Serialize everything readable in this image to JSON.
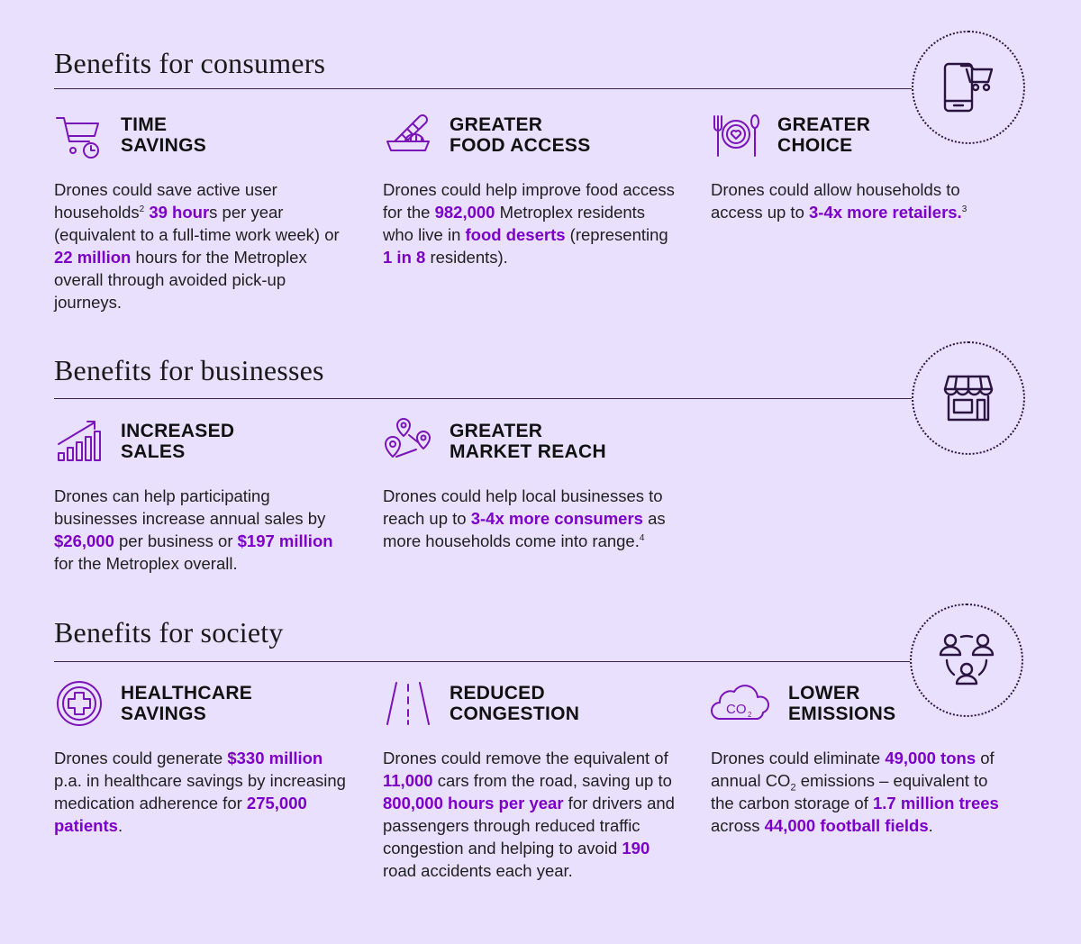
{
  "sections": [
    {
      "title": "Benefits for consumers",
      "badge_icon": "phone-cart-icon",
      "items": [
        {
          "icon": "cart-clock-icon",
          "title_line1": "TIME",
          "title_line2": "SAVINGS",
          "body": [
            {
              "t": "Drones could save active user households"
            },
            {
              "sup": "2"
            },
            {
              "t": " "
            },
            {
              "hl": "39 hour"
            },
            {
              "t": "s per year (equivalent to a full-time work week) or "
            },
            {
              "hl": "22 million"
            },
            {
              "t": " hours for the Metroplex overall through avoided pick-up journeys."
            }
          ]
        },
        {
          "icon": "food-basket-icon",
          "title_line1": "GREATER",
          "title_line2": "FOOD ACCESS",
          "body": [
            {
              "t": "Drones could help improve food access for the "
            },
            {
              "hl": "982,000"
            },
            {
              "t": " Metroplex residents who live in "
            },
            {
              "hl": "food deserts"
            },
            {
              "t": " (representing "
            },
            {
              "hl": "1 in 8"
            },
            {
              "t": " residents)."
            }
          ]
        },
        {
          "icon": "plate-cutlery-icon",
          "title_line1": "GREATER",
          "title_line2": "CHOICE",
          "body": [
            {
              "t": "Drones could allow households to access up to "
            },
            {
              "hl": "3-4x more retailers."
            },
            {
              "sup": "3"
            }
          ]
        }
      ]
    },
    {
      "title": "Benefits for businesses",
      "badge_icon": "storefront-icon",
      "items": [
        {
          "icon": "bar-chart-growth-icon",
          "title_line1": "INCREASED",
          "title_line2": "SALES",
          "body": [
            {
              "t": "Drones can help participating businesses increase annual sales by "
            },
            {
              "hl": "$26,000"
            },
            {
              "t": " per business or "
            },
            {
              "hl": "$197 million"
            },
            {
              "t": " for the Metroplex overall."
            }
          ]
        },
        {
          "icon": "map-pins-icon",
          "title_line1": "GREATER",
          "title_line2": "MARKET REACH",
          "body": [
            {
              "t": "Drones could help local businesses to reach up to "
            },
            {
              "hl": "3-4x more consumers"
            },
            {
              "t": " as more households come into range."
            },
            {
              "sup": "4"
            }
          ]
        }
      ]
    },
    {
      "title": "Benefits for society",
      "badge_icon": "people-network-icon",
      "items": [
        {
          "icon": "medical-cross-icon",
          "title_line1": "HEALTHCARE",
          "title_line2": "SAVINGS",
          "body": [
            {
              "t": "Drones could generate "
            },
            {
              "hl": "$330 million"
            },
            {
              "t": " p.a. in healthcare savings by increasing medication adherence for "
            },
            {
              "hl": "275,000 patients"
            },
            {
              "t": "."
            }
          ]
        },
        {
          "icon": "road-icon",
          "title_line1": "REDUCED",
          "title_line2": "CONGESTION",
          "body": [
            {
              "t": "Drones could remove the equivalent of "
            },
            {
              "hl": "11,000"
            },
            {
              "t": " cars from the road, saving up to "
            },
            {
              "hl": "800,000 hours per year"
            },
            {
              "t": " for drivers and passengers through reduced traffic congestion and helping to avoid "
            },
            {
              "hl": "190"
            },
            {
              "t": " road accidents each year."
            }
          ]
        },
        {
          "icon": "co2-cloud-icon",
          "icon_text": "CO",
          "icon_sub": "2",
          "title_line1": "LOWER",
          "title_line2": "EMISSIONS",
          "body": [
            {
              "t": "Drones could eliminate "
            },
            {
              "hl": "49,000 tons"
            },
            {
              "t": " of annual CO"
            },
            {
              "sub": "2"
            },
            {
              "t": " emissions – equivalent to the carbon storage of "
            },
            {
              "hl": "1.7 million trees"
            },
            {
              "t": " across "
            },
            {
              "hl": "44,000 football fields"
            },
            {
              "t": "."
            }
          ]
        }
      ]
    }
  ]
}
